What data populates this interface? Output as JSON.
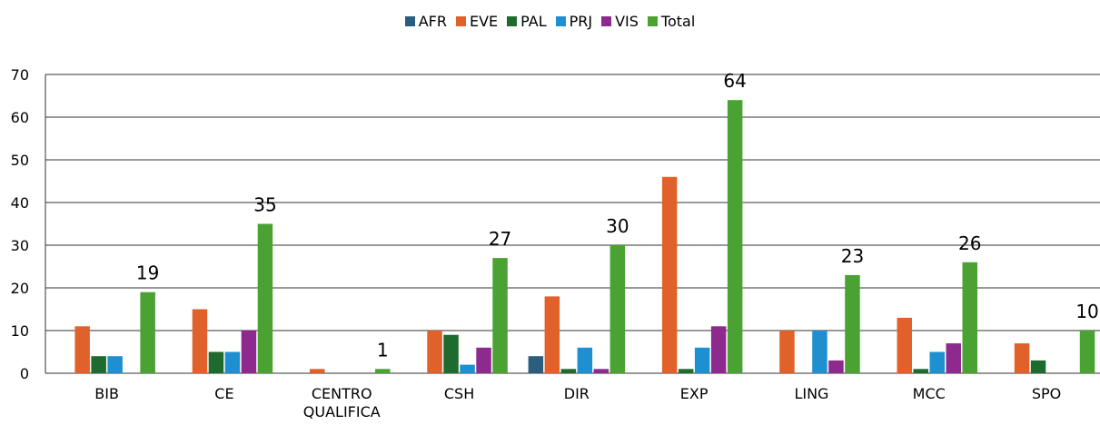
{
  "chart_data": {
    "type": "bar",
    "categories": [
      "BIB",
      "CE",
      "CENTRO QUALIFICA",
      "CSH",
      "DIR",
      "EXP",
      "LING",
      "MCC",
      "SPO"
    ],
    "series": [
      {
        "name": "AFR",
        "color": "#2b5d7d",
        "values": [
          0,
          0,
          0,
          0,
          4,
          0,
          0,
          0,
          0
        ]
      },
      {
        "name": "EVE",
        "color": "#e0622a",
        "values": [
          11,
          15,
          1,
          10,
          18,
          46,
          10,
          13,
          7
        ]
      },
      {
        "name": "PAL",
        "color": "#1f6b2f",
        "values": [
          4,
          5,
          0,
          9,
          1,
          1,
          0,
          1,
          3
        ]
      },
      {
        "name": "PRJ",
        "color": "#1f90cf",
        "values": [
          4,
          5,
          0,
          2,
          6,
          6,
          10,
          5,
          0
        ]
      },
      {
        "name": "VIS",
        "color": "#8e2a8e",
        "values": [
          0,
          10,
          0,
          6,
          1,
          11,
          3,
          7,
          0
        ]
      },
      {
        "name": "Total",
        "color": "#4aa232",
        "values": [
          19,
          35,
          1,
          27,
          30,
          64,
          23,
          26,
          10
        ],
        "data_labels": true
      }
    ],
    "ylim": [
      0,
      70
    ],
    "yticks": [
      0,
      10,
      20,
      30,
      40,
      50,
      60,
      70
    ],
    "grid": true,
    "legend": "top"
  }
}
